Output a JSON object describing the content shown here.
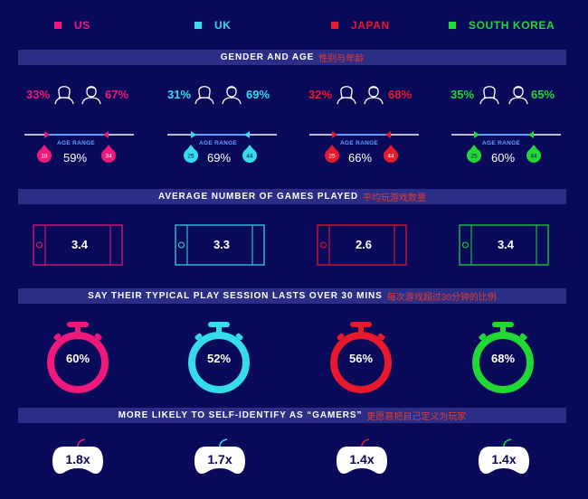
{
  "colors": {
    "background": "#0a0a5a",
    "band": "#2a2e86",
    "chinese_text": "#e8392f",
    "range_label": "#5ea0ff"
  },
  "countries": [
    {
      "name": "US",
      "color": "#f0187a",
      "female_pct": "33%",
      "male_pct": "67%",
      "age_min": "18",
      "age_max": "34",
      "age_range_pct": "59%",
      "games_played": "3.4",
      "session_pct": "60%",
      "gamer_multiplier": "1.8x"
    },
    {
      "name": "UK",
      "color": "#36dcea",
      "female_pct": "31%",
      "male_pct": "69%",
      "age_min": "25",
      "age_max": "44",
      "age_range_pct": "69%",
      "games_played": "3.3",
      "session_pct": "52%",
      "gamer_multiplier": "1.7x"
    },
    {
      "name": "JAPAN",
      "color": "#e8192c",
      "female_pct": "32%",
      "male_pct": "68%",
      "age_min": "25",
      "age_max": "44",
      "age_range_pct": "66%",
      "games_played": "2.6",
      "session_pct": "56%",
      "gamer_multiplier": "1.4x"
    },
    {
      "name": "SOUTH KOREA",
      "color": "#22d835",
      "female_pct": "35%",
      "male_pct": "65%",
      "age_min": "25",
      "age_max": "44",
      "age_range_pct": "60%",
      "games_played": "3.4",
      "session_pct": "68%",
      "gamer_multiplier": "1.4x"
    }
  ],
  "sections": {
    "gender_age": {
      "title_en": "GENDER AND AGE",
      "title_zh": "性别与年龄",
      "age_range_label": "AGE RANGE"
    },
    "games_played": {
      "title_en": "AVERAGE NUMBER OF GAMES PLAYED",
      "title_zh": "平均玩游戏数量"
    },
    "play_session": {
      "title_en": "SAY THEIR TYPICAL PLAY SESSION LASTS OVER 30 MINS",
      "title_zh": "每次游戏超过30分钟的比例"
    },
    "gamers": {
      "title_en": "MORE LIKELY TO SELF-IDENTIFY AS “GAMERS”",
      "title_zh": "更愿意把自己定义为玩家"
    }
  }
}
